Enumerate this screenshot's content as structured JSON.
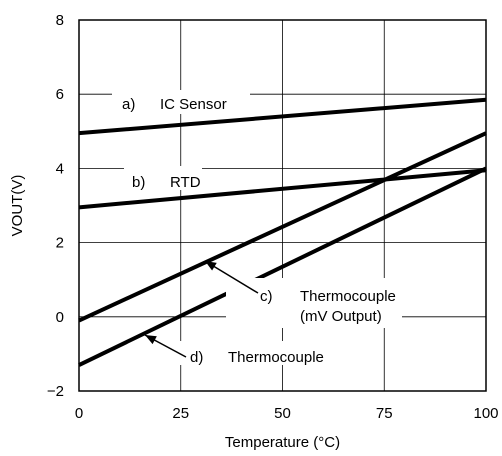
{
  "chart_data": {
    "type": "line",
    "title": "",
    "xlabel": "Temperature (°C)",
    "ylabel": "VOUT(V)",
    "xlim": [
      0,
      100
    ],
    "ylim": [
      -2,
      8
    ],
    "x_ticks": [
      "0",
      "25",
      "50",
      "75",
      "100"
    ],
    "y_ticks": [
      "−2",
      "0",
      "2",
      "4",
      "6",
      "8"
    ],
    "grid": true,
    "legend": "none",
    "series": [
      {
        "name": "a)  IC Sensor",
        "x": [
          0,
          100
        ],
        "y": [
          4.95,
          5.85
        ]
      },
      {
        "name": "b)  RTD",
        "x": [
          0,
          100
        ],
        "y": [
          2.95,
          3.95
        ]
      },
      {
        "name": "c)  Thermocouple (mV Output)",
        "x": [
          0,
          100
        ],
        "y": [
          -0.1,
          4.95
        ]
      },
      {
        "name": "d)  Thermocouple",
        "x": [
          0,
          100
        ],
        "y": [
          -1.3,
          4.0
        ]
      }
    ],
    "annotations": [
      {
        "letter": "a)",
        "text": "IC Sensor"
      },
      {
        "letter": "b)",
        "text": "RTD"
      },
      {
        "letter": "c)",
        "text": "Thermocouple",
        "text2": "(mV Output)"
      },
      {
        "letter": "d)",
        "text": "Thermocouple"
      }
    ]
  }
}
